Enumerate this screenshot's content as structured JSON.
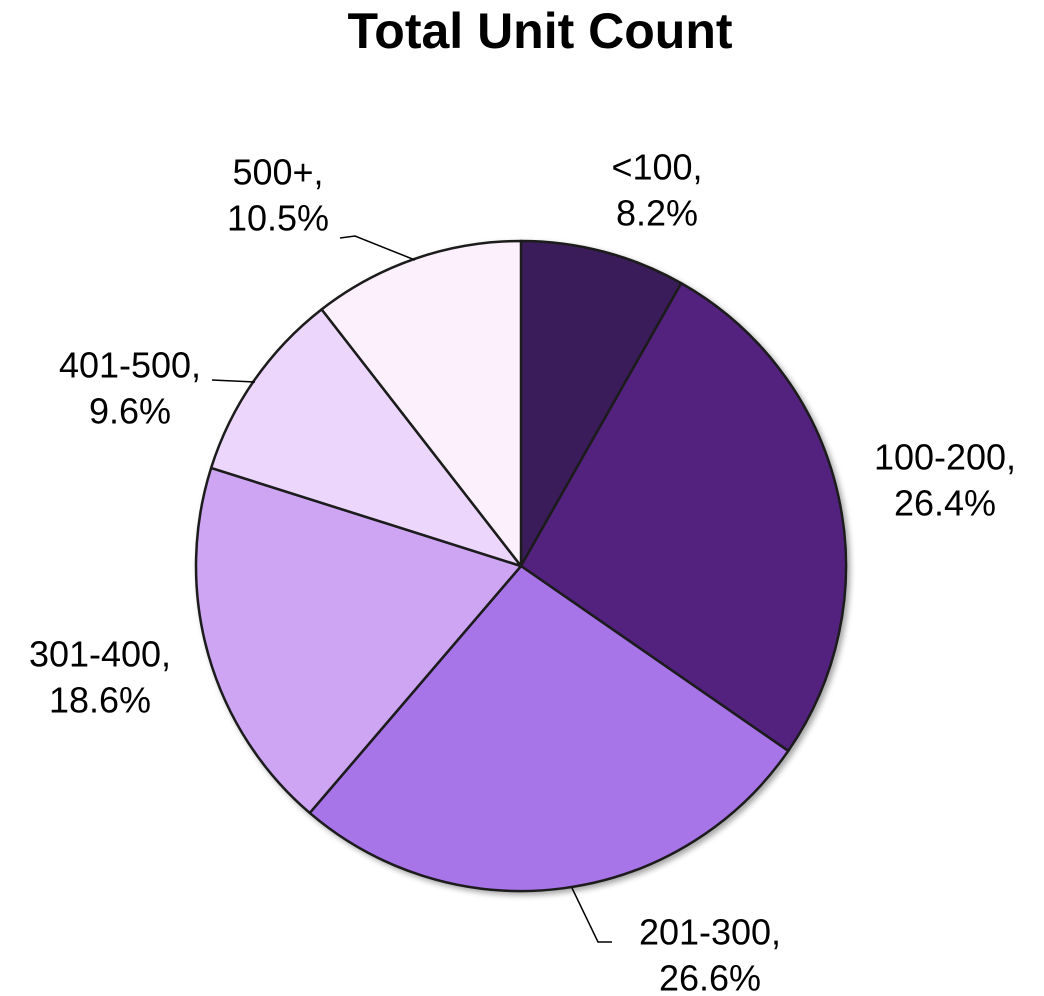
{
  "chart_data": {
    "type": "pie",
    "title": "Total Unit Count",
    "categories": [
      "<100,",
      "100-200,",
      "201-300,",
      "301-400,",
      "401-500,",
      "500+,"
    ],
    "values": [
      8.2,
      26.4,
      26.6,
      18.6,
      9.6,
      10.5
    ],
    "value_labels": [
      "8.2%",
      "26.4%",
      "26.6%",
      "18.6%",
      "9.6%",
      "10.5%"
    ],
    "colors": [
      "#3a1d5a",
      "#52237f",
      "#a874e8",
      "#cda5f2",
      "#ecd6fc",
      "#fdf0fd"
    ]
  }
}
